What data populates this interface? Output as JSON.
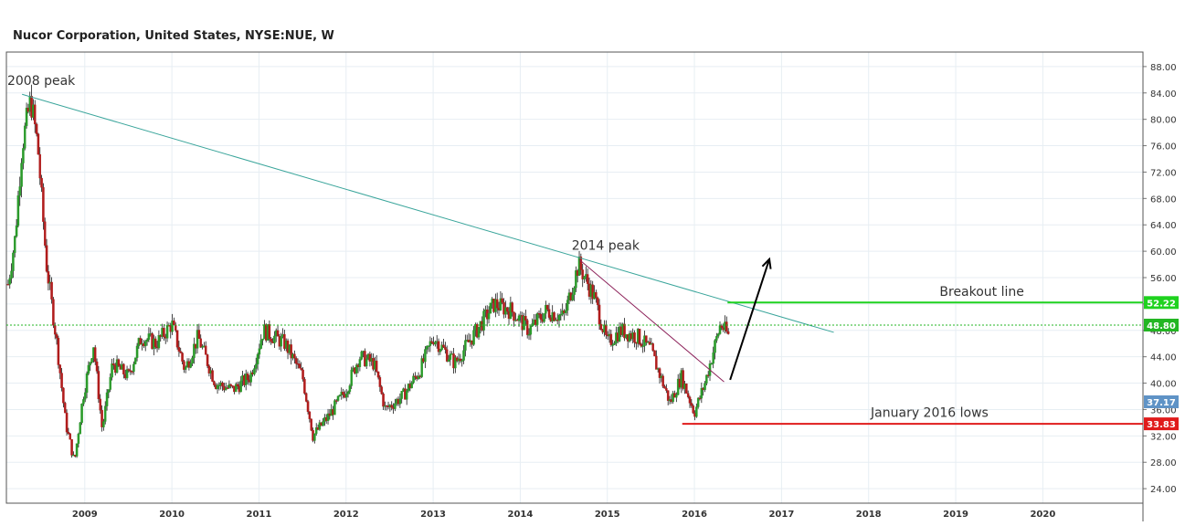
{
  "header": {
    "title": "Nucor Corporation, United States, NYSE:NUE, W"
  },
  "chart_data": {
    "type": "candlestick",
    "title": "Nucor Corporation, United States, NYSE:NUE, W",
    "interval": "W",
    "xlabel": "",
    "ylabel": "",
    "x_ticks": [
      "2009",
      "2010",
      "2011",
      "2012",
      "2013",
      "2014",
      "2015",
      "2016",
      "2017",
      "2018",
      "2019",
      "2020"
    ],
    "y_ticks": [
      "88.00",
      "84.00",
      "80.00",
      "76.00",
      "72.00",
      "68.00",
      "64.00",
      "60.00",
      "56.00",
      "52.00",
      "48.00",
      "44.00",
      "40.00",
      "36.00",
      "32.00",
      "28.00",
      "24.00"
    ],
    "ylim": [
      21.8,
      90.2
    ],
    "xlim": [
      2008.1,
      2021.15
    ],
    "grid": true,
    "colors": {
      "up": "#2a9a2a",
      "down": "#b01c1c",
      "grid": "#e7eef3",
      "axis": "#444444"
    },
    "series_keypoints": [
      {
        "x": 2008.12,
        "y": 55.0
      },
      {
        "x": 2008.2,
        "y": 62.0
      },
      {
        "x": 2008.28,
        "y": 76.0
      },
      {
        "x": 2008.38,
        "y": 83.0
      },
      {
        "x": 2008.46,
        "y": 76.0
      },
      {
        "x": 2008.56,
        "y": 58.0
      },
      {
        "x": 2008.68,
        "y": 46.0
      },
      {
        "x": 2008.78,
        "y": 34.0
      },
      {
        "x": 2008.88,
        "y": 28.0
      },
      {
        "x": 2008.98,
        "y": 38.0
      },
      {
        "x": 2009.1,
        "y": 46.0
      },
      {
        "x": 2009.2,
        "y": 33.0
      },
      {
        "x": 2009.32,
        "y": 43.0
      },
      {
        "x": 2009.5,
        "y": 41.0
      },
      {
        "x": 2009.65,
        "y": 47.0
      },
      {
        "x": 2009.82,
        "y": 46.0
      },
      {
        "x": 2010.0,
        "y": 49.0
      },
      {
        "x": 2010.15,
        "y": 42.0
      },
      {
        "x": 2010.3,
        "y": 47.0
      },
      {
        "x": 2010.5,
        "y": 40.0
      },
      {
        "x": 2010.7,
        "y": 39.0
      },
      {
        "x": 2010.9,
        "y": 41.0
      },
      {
        "x": 2011.05,
        "y": 48.0
      },
      {
        "x": 2011.3,
        "y": 46.0
      },
      {
        "x": 2011.5,
        "y": 41.0
      },
      {
        "x": 2011.62,
        "y": 32.0
      },
      {
        "x": 2011.8,
        "y": 35.0
      },
      {
        "x": 2012.0,
        "y": 39.0
      },
      {
        "x": 2012.15,
        "y": 44.0
      },
      {
        "x": 2012.32,
        "y": 43.0
      },
      {
        "x": 2012.45,
        "y": 36.0
      },
      {
        "x": 2012.65,
        "y": 38.0
      },
      {
        "x": 2012.85,
        "y": 42.0
      },
      {
        "x": 2013.0,
        "y": 47.0
      },
      {
        "x": 2013.25,
        "y": 43.0
      },
      {
        "x": 2013.5,
        "y": 48.0
      },
      {
        "x": 2013.7,
        "y": 52.0
      },
      {
        "x": 2013.9,
        "y": 51.0
      },
      {
        "x": 2014.1,
        "y": 48.0
      },
      {
        "x": 2014.3,
        "y": 51.0
      },
      {
        "x": 2014.5,
        "y": 50.0
      },
      {
        "x": 2014.67,
        "y": 58.0
      },
      {
        "x": 2014.85,
        "y": 53.0
      },
      {
        "x": 2015.0,
        "y": 46.0
      },
      {
        "x": 2015.15,
        "y": 48.0
      },
      {
        "x": 2015.35,
        "y": 47.0
      },
      {
        "x": 2015.5,
        "y": 45.0
      },
      {
        "x": 2015.72,
        "y": 37.0
      },
      {
        "x": 2015.85,
        "y": 41.0
      },
      {
        "x": 2016.0,
        "y": 35.5
      },
      {
        "x": 2016.12,
        "y": 40.0
      },
      {
        "x": 2016.3,
        "y": 49.0
      },
      {
        "x": 2016.4,
        "y": 47.0
      }
    ],
    "price_labels": [
      {
        "value": 52.22,
        "text": "52.22",
        "color": "#1fd21f"
      },
      {
        "value": 48.8,
        "text": "48.80",
        "color": "#23b623"
      },
      {
        "value": 37.17,
        "text": "37.17",
        "color": "#5f93c6"
      },
      {
        "value": 33.83,
        "text": "33.83",
        "color": "#e01b1b"
      }
    ],
    "annotations": [
      {
        "text": "2008 peak",
        "x": 2008.5,
        "y": 85.2
      },
      {
        "text": "2014 peak",
        "x": 2014.98,
        "y": 60.2
      },
      {
        "text": "Breakout line",
        "x": 2019.3,
        "y": 53.2
      },
      {
        "text": "January 2016 lows",
        "x": 2018.7,
        "y": 34.9
      }
    ],
    "lines": [
      {
        "name": "long-trendline",
        "from": [
          2008.28,
          83.8
        ],
        "to": [
          2017.6,
          47.7
        ],
        "color": "#3aa59b"
      },
      {
        "name": "short-trendline",
        "from": [
          2014.68,
          58.7
        ],
        "to": [
          2016.34,
          40.2
        ],
        "color": "#8b1f58"
      },
      {
        "name": "breakout-line",
        "from": [
          2016.38,
          52.22
        ],
        "to": [
          2021.15,
          52.22
        ],
        "color": "#1fd21f"
      },
      {
        "name": "january-2016-lows-line",
        "from": [
          2015.86,
          33.83
        ],
        "to": [
          2021.15,
          33.83
        ],
        "color": "#e01b1b"
      },
      {
        "name": "last-price-line",
        "from": [
          2008.1,
          48.8
        ],
        "to": [
          2021.15,
          48.8
        ],
        "color": "#23b623",
        "dashed": true
      }
    ],
    "arrow": {
      "from": [
        2016.41,
        40.5
      ],
      "to": [
        2016.86,
        58.8
      ],
      "color": "#000000"
    }
  }
}
